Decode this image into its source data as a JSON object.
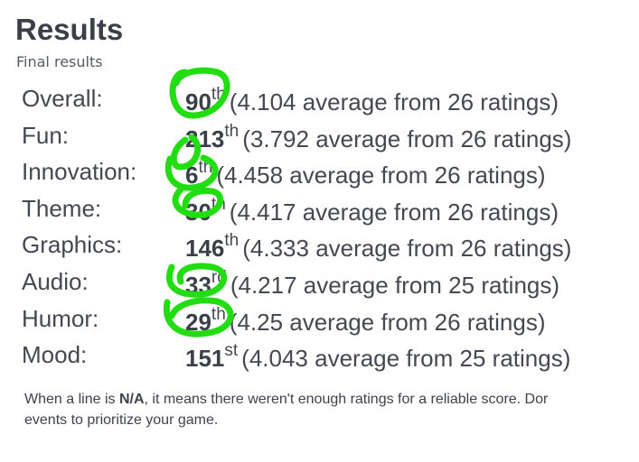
{
  "header": {
    "title": "Results",
    "subtitle": "Final results"
  },
  "table": {
    "rows": [
      {
        "category": "Overall:",
        "rank": 90,
        "suffix": "th",
        "detail": "(4.104 average from 26 ratings)"
      },
      {
        "category": "Fun:",
        "rank": 213,
        "suffix": "th",
        "detail": "(3.792 average from 26 ratings)"
      },
      {
        "category": "Innovation:",
        "rank": 6,
        "suffix": "th",
        "detail": "(4.458 average from 26 ratings)"
      },
      {
        "category": "Theme:",
        "rank": 30,
        "suffix": "th",
        "detail": "(4.417 average from 26 ratings)"
      },
      {
        "category": "Graphics:",
        "rank": 146,
        "suffix": "th",
        "detail": "(4.333 average from 26 ratings)"
      },
      {
        "category": "Audio:",
        "rank": 33,
        "suffix": "rd",
        "detail": "(4.217 average from 25 ratings)"
      },
      {
        "category": "Humor:",
        "rank": 29,
        "suffix": "th",
        "detail": "(4.25 average from 26 ratings)"
      },
      {
        "category": "Mood:",
        "rank": 151,
        "suffix": "st",
        "detail": "(4.043 average from 25 ratings)"
      }
    ]
  },
  "note": {
    "before": "When a line is ",
    "bold": "N/A",
    "after": ", it means there weren't enough ratings for a reliable score. Dor",
    "line2": "events to prioritize your game."
  }
}
